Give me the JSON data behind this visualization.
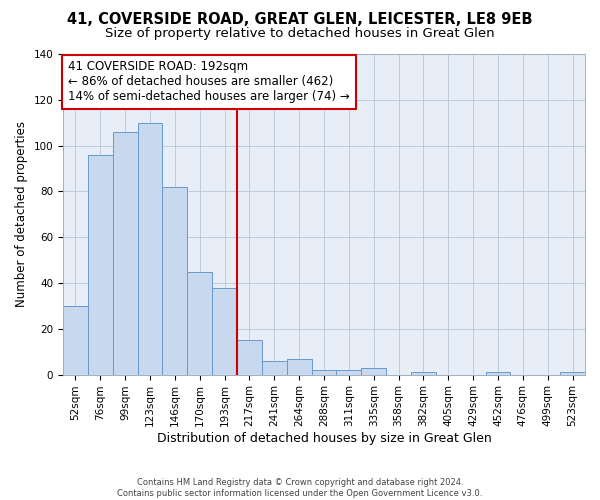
{
  "title": "41, COVERSIDE ROAD, GREAT GLEN, LEICESTER, LE8 9EB",
  "subtitle": "Size of property relative to detached houses in Great Glen",
  "xlabel": "Distribution of detached houses by size in Great Glen",
  "ylabel": "Number of detached properties",
  "categories": [
    "52sqm",
    "76sqm",
    "99sqm",
    "123sqm",
    "146sqm",
    "170sqm",
    "193sqm",
    "217sqm",
    "241sqm",
    "264sqm",
    "288sqm",
    "311sqm",
    "335sqm",
    "358sqm",
    "382sqm",
    "405sqm",
    "429sqm",
    "452sqm",
    "476sqm",
    "499sqm",
    "523sqm"
  ],
  "values": [
    30,
    96,
    106,
    110,
    82,
    45,
    38,
    15,
    6,
    7,
    2,
    2,
    3,
    0,
    1,
    0,
    0,
    1,
    0,
    0,
    1
  ],
  "bar_color": "#c8d8ee",
  "bar_edge_color": "#6699cc",
  "vline_color": "#cc0000",
  "annotation_text": "41 COVERSIDE ROAD: 192sqm\n← 86% of detached houses are smaller (462)\n14% of semi-detached houses are larger (74) →",
  "annotation_box_color": "#ffffff",
  "annotation_box_edge": "#cc0000",
  "footer_text": "Contains HM Land Registry data © Crown copyright and database right 2024.\nContains public sector information licensed under the Open Government Licence v3.0.",
  "ylim": [
    0,
    140
  ],
  "yticks": [
    0,
    20,
    40,
    60,
    80,
    100,
    120,
    140
  ],
  "title_fontsize": 10.5,
  "subtitle_fontsize": 9.5,
  "xlabel_fontsize": 9,
  "ylabel_fontsize": 8.5,
  "tick_fontsize": 7.5,
  "background_color": "#e8eef8"
}
